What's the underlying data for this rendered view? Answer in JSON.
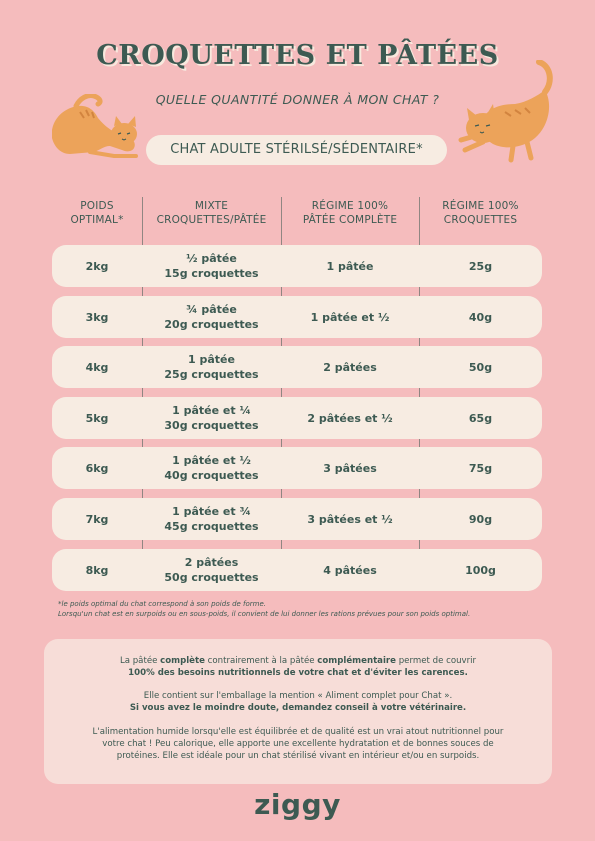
{
  "header": {
    "title": "CROQUETTES ET PÂTÉES",
    "subtitle": "QUELLE QUANTITÉ DONNER À MON CHAT ?",
    "category": "CHAT ADULTE STÉRILSÉ/SÉDENTAIRE*"
  },
  "table": {
    "headers": [
      [
        "POIDS",
        "OPTIMAL*"
      ],
      [
        "MIXTE",
        "CROQUETTES/PÂTÉE"
      ],
      [
        "RÉGIME 100%",
        "PÂTÉE COMPLÈTE"
      ],
      [
        "RÉGIME 100%",
        "CROQUETTES"
      ]
    ],
    "rows": [
      {
        "weight": "2kg",
        "mix1": "½ pâtée",
        "mix2": "15g croquettes",
        "pate": "1 pâtée",
        "croq": "25g"
      },
      {
        "weight": "3kg",
        "mix1": "¾ pâtée",
        "mix2": "20g croquettes",
        "pate": "1 pâtée et ½",
        "croq": "40g"
      },
      {
        "weight": "4kg",
        "mix1": "1 pâtée",
        "mix2": "25g croquettes",
        "pate": "2 pâtées",
        "croq": "50g"
      },
      {
        "weight": "5kg",
        "mix1": "1 pâtée et ¼",
        "mix2": "30g croquettes",
        "pate": "2 pâtées et ½",
        "croq": "65g"
      },
      {
        "weight": "6kg",
        "mix1": "1 pâtée et ½",
        "mix2": "40g croquettes",
        "pate": "3 pâtées",
        "croq": "75g"
      },
      {
        "weight": "7kg",
        "mix1": "1 pâtée et ¾",
        "mix2": "45g croquettes",
        "pate": "3 pâtées et ½",
        "croq": "90g"
      },
      {
        "weight": "8kg",
        "mix1": "2 pâtées",
        "mix2": "50g croquettes",
        "pate": "4 pâtées",
        "croq": "100g"
      }
    ]
  },
  "notes": {
    "line1": "*le poids optimal du chat correspond à son poids de forme.",
    "line2": "Lorsqu'un chat est en surpoids ou en sous-poids, il convient de lui donner les rations prévues pour son poids optimal."
  },
  "info": {
    "p1_a": "La pâtée ",
    "p1_b": "complète",
    "p1_c": " contrairement à la pâtée ",
    "p1_d": "complémentaire",
    "p1_e": " permet de couvrir",
    "p1_f": "100% des besoins nutritionnels de votre chat et d'éviter les carences.",
    "p2_a": "Elle contient sur l'emballage la mention « Aliment complet pour Chat ».",
    "p2_b": "Si vous avez le moindre doute, demandez conseil à votre vétérinaire.",
    "p3_a": "L'alimentation humide lorsqu'elle est équilibrée et de qualité est un vrai atout nutritionnel pour",
    "p3_b": "votre chat ! Peu calorique, elle apporte une excellente hydratation et de bonnes souces de",
    "p3_c": "protéines. Elle est idéale pour un chat stérilisé vivant en intérieur et/ou en surpoids."
  },
  "brand": "ziggy",
  "colors": {
    "background": "#f5bcbd",
    "text": "#3d5a52",
    "cream": "#f7ece2",
    "cat": "#eca35a"
  },
  "icons": [
    "cat-stretching-icon",
    "cat-jumping-icon"
  ]
}
